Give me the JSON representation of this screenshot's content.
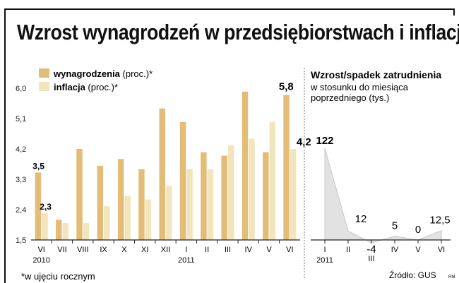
{
  "title": "Wzrost wynagrodzeń w przedsiębiorstwach i inflacja",
  "footnote": "*w ujęciu rocznym",
  "source": "Źródło: GUS",
  "signature": "RM",
  "colors": {
    "wages": "#e3bd78",
    "inflation": "#f2e4bd",
    "employment_area": "#e2e2e2",
    "employment_line": "#c8c8c8"
  },
  "chart_data": [
    {
      "type": "bar",
      "title": "",
      "categories": [
        "VI",
        "VII",
        "VIII",
        "IX",
        "X",
        "XI",
        "XII",
        "I",
        "II",
        "III",
        "IV",
        "V",
        "VI"
      ],
      "year_labels": [
        {
          "text": "2010",
          "category_index": 0
        },
        {
          "text": "2011",
          "category_index": 7
        }
      ],
      "series": [
        {
          "name": "wynagrodzenia",
          "legend_suffix": " (proc.)*",
          "values": [
            3.5,
            2.1,
            4.2,
            3.7,
            3.9,
            3.6,
            5.4,
            5.0,
            4.1,
            4.0,
            5.9,
            4.1,
            5.8
          ]
        },
        {
          "name": "inflacja",
          "legend_suffix": " (proc.)*",
          "values": [
            2.3,
            2.0,
            2.0,
            2.5,
            2.8,
            2.7,
            3.1,
            3.6,
            3.6,
            4.3,
            4.5,
            5.0,
            4.2
          ]
        }
      ],
      "data_labels": [
        {
          "series": 0,
          "index": 0,
          "text": "3,5"
        },
        {
          "series": 1,
          "index": 0,
          "text": "2,3"
        },
        {
          "series": 0,
          "index": 12,
          "text": "5,8"
        },
        {
          "series": 1,
          "index": 12,
          "text": "4,2"
        }
      ],
      "y_ticks": [
        {
          "value": 1.5,
          "label": "1,5"
        },
        {
          "value": 2.4,
          "label": "2,4"
        },
        {
          "value": 3.3,
          "label": "3,3"
        },
        {
          "value": 4.2,
          "label": "4,2"
        },
        {
          "value": 5.1,
          "label": "5,1"
        },
        {
          "value": 6.0,
          "label": "6,0"
        }
      ],
      "ylim": [
        1.5,
        6.0
      ],
      "grid": false,
      "legend": "top-left"
    },
    {
      "type": "area",
      "title": "Wzrost/spadek zatrudnienia",
      "subtitle_lines": [
        "w stosunku do miesiąca",
        "poprzedniego (tys.)"
      ],
      "categories": [
        "I",
        "II",
        "III",
        "IV",
        "V",
        "VI"
      ],
      "year_label": {
        "text": "2011",
        "category_index": 0
      },
      "values": [
        122,
        12,
        -4,
        5,
        0,
        12.5
      ],
      "data_labels": [
        "122",
        "12",
        "-4",
        "5",
        "0",
        "12,5"
      ],
      "ylim": [
        -10,
        130
      ],
      "grid": false
    }
  ]
}
